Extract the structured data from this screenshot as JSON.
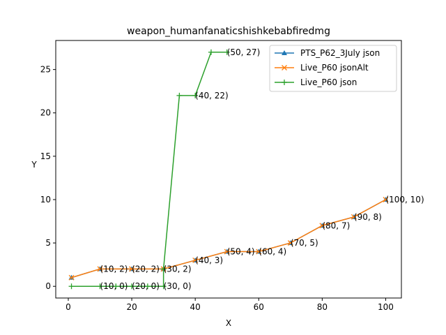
{
  "chart_data": {
    "type": "line",
    "title": "weapon_humanfanaticshishkebabfiredmg",
    "xlabel": "X",
    "ylabel": "Y",
    "xlim": [
      -3.95,
      104.95
    ],
    "ylim": [
      -1.35,
      28.35
    ],
    "xticks": [
      0,
      20,
      40,
      60,
      80,
      100
    ],
    "yticks": [
      0,
      5,
      10,
      15,
      20,
      25
    ],
    "grid": false,
    "legend_position": "upper right",
    "series": [
      {
        "name": "PTS_P62_3July json",
        "color": "#1f77b4",
        "marker": "triangle-up",
        "x": [
          1,
          10,
          20,
          30,
          40,
          50,
          60,
          70,
          80,
          90,
          100
        ],
        "y": [
          1,
          2,
          2,
          2,
          3,
          4,
          4,
          5,
          7,
          8,
          10
        ]
      },
      {
        "name": "Live_P60 jsonAlt",
        "color": "#ff7f0e",
        "marker": "x",
        "x": [
          1,
          10,
          20,
          30,
          40,
          50,
          60,
          70,
          80,
          90,
          100
        ],
        "y": [
          1,
          2,
          2,
          2,
          3,
          4,
          4,
          5,
          7,
          8,
          10
        ]
      },
      {
        "name": "Live_P60 json",
        "color": "#2ca02c",
        "marker": "plus",
        "x": [
          1,
          10,
          15,
          20,
          25,
          30,
          30,
          35,
          40,
          45,
          50
        ],
        "y": [
          0,
          0,
          0,
          0,
          0,
          0,
          2,
          22,
          22,
          27,
          27
        ]
      }
    ],
    "annotations": [
      {
        "text": "(10, 2)",
        "x": 10,
        "y": 2
      },
      {
        "text": "(20, 2)",
        "x": 20,
        "y": 2
      },
      {
        "text": "(30, 2)",
        "x": 30,
        "y": 2
      },
      {
        "text": "(40, 3)",
        "x": 40,
        "y": 3
      },
      {
        "text": "(50, 4)",
        "x": 50,
        "y": 4
      },
      {
        "text": "(60, 4)",
        "x": 60,
        "y": 4
      },
      {
        "text": "(70, 5)",
        "x": 70,
        "y": 5
      },
      {
        "text": "(80, 7)",
        "x": 80,
        "y": 7
      },
      {
        "text": "(90, 8)",
        "x": 90,
        "y": 8
      },
      {
        "text": "(100, 10)",
        "x": 100,
        "y": 10
      },
      {
        "text": "(10, 0)",
        "x": 10,
        "y": 0
      },
      {
        "text": "(20, 0)",
        "x": 20,
        "y": 0
      },
      {
        "text": "(30, 0)",
        "x": 30,
        "y": 0
      },
      {
        "text": "(40, 22)",
        "x": 40,
        "y": 22
      },
      {
        "text": "(50, 27)",
        "x": 50,
        "y": 27
      }
    ]
  }
}
